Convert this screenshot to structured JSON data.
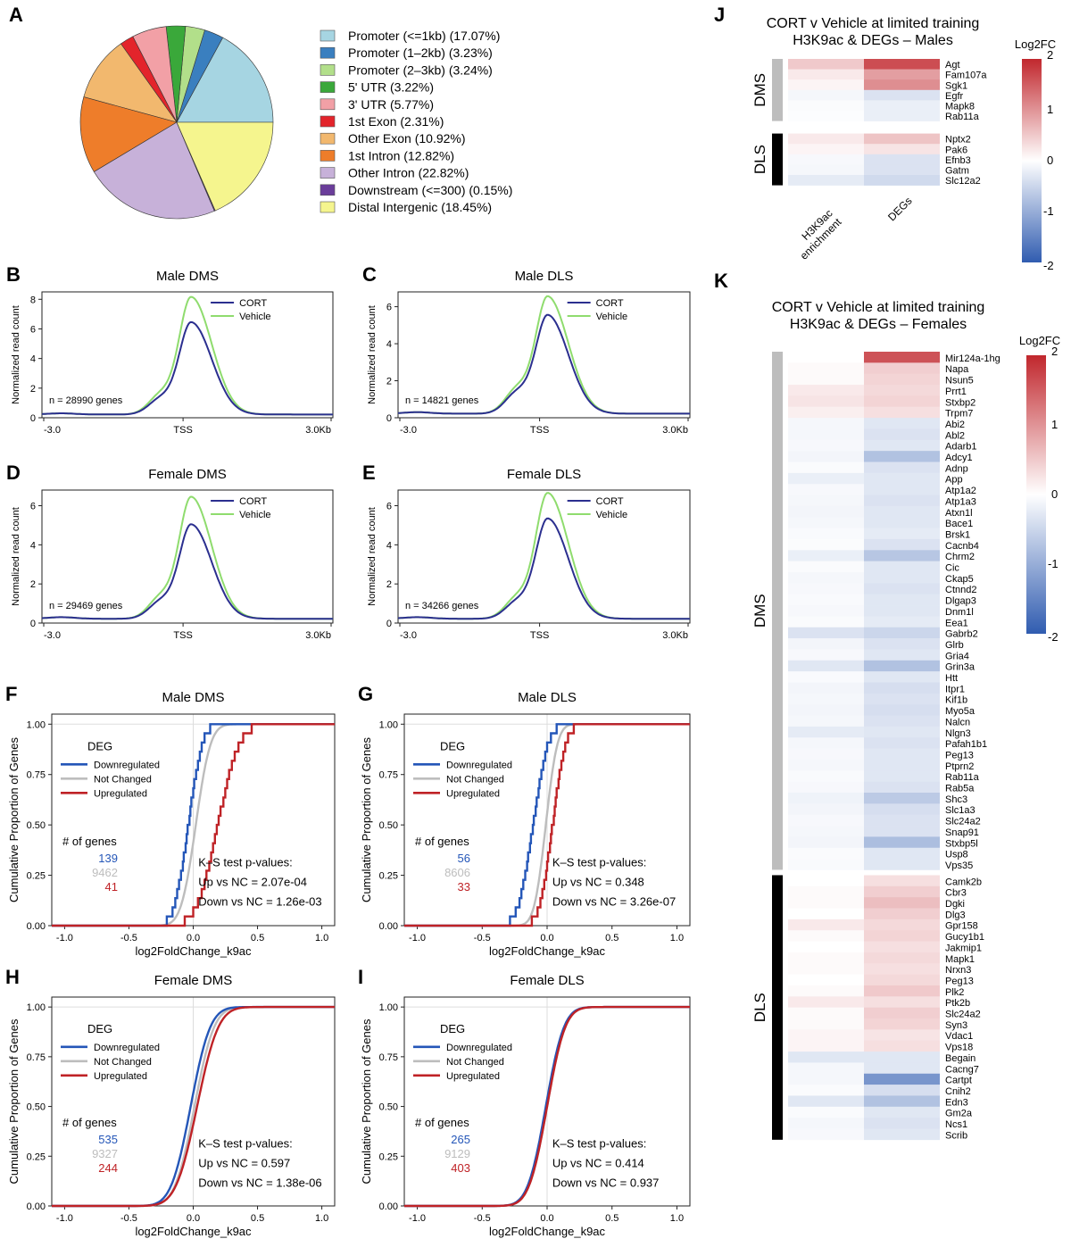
{
  "chart_data": [
    {
      "id": "A",
      "type": "pie",
      "panel_label": "A",
      "slices": [
        {
          "label": "Promoter (<=1kb) (17.07%)",
          "value": 17.07,
          "color": "#a6d5e2"
        },
        {
          "label": "Promoter (1–2kb) (3.23%)",
          "value": 3.23,
          "color": "#3a7fbf"
        },
        {
          "label": "Promoter (2–3kb) (3.24%)",
          "value": 3.24,
          "color": "#b2df8a"
        },
        {
          "label": "5' UTR (3.22%)",
          "value": 3.22,
          "color": "#3aa83a"
        },
        {
          "label": "3' UTR (5.77%)",
          "value": 5.77,
          "color": "#f2a0a6"
        },
        {
          "label": "1st Exon (2.31%)",
          "value": 2.31,
          "color": "#e3242b"
        },
        {
          "label": "Other Exon (10.92%)",
          "value": 10.92,
          "color": "#f2b86e"
        },
        {
          "label": "1st Intron (12.82%)",
          "value": 12.82,
          "color": "#ee7d2a"
        },
        {
          "label": "Other Intron (22.82%)",
          "value": 22.82,
          "color": "#c7b1d9"
        },
        {
          "label": "Downstream (<=300) (0.15%)",
          "value": 0.15,
          "color": "#6a3d9a"
        },
        {
          "label": "Distal Intergenic (18.45%)",
          "value": 18.45,
          "color": "#f5f58e"
        }
      ]
    },
    {
      "id": "B",
      "type": "line",
      "panel_label": "B",
      "title": "Male DMS",
      "ylabel": "Normalized read count",
      "ylim": [
        0,
        8.5
      ],
      "yticks": [
        0,
        2,
        4,
        6,
        8
      ],
      "xtick_labels": [
        "-3.0",
        "TSS",
        "3.0Kb"
      ],
      "annotation": "n = 28990 genes",
      "legend": [
        "CORT",
        "Vehicle"
      ],
      "cort_peak": 6.4,
      "veh_peak": 8.1,
      "shoulder": 0.36
    },
    {
      "id": "C",
      "type": "line",
      "panel_label": "C",
      "title": "Male DLS",
      "ylabel": "Normalized read count",
      "ylim": [
        0,
        6.8
      ],
      "yticks": [
        0,
        2,
        4,
        6
      ],
      "xtick_labels": [
        "-3.0",
        "TSS",
        "3.0Kb"
      ],
      "annotation": "n = 14821 genes",
      "legend": [
        "CORT",
        "Vehicle"
      ],
      "cort_peak": 5.5,
      "veh_peak": 6.5,
      "shoulder": 0.45
    },
    {
      "id": "D",
      "type": "line",
      "panel_label": "D",
      "title": "Female DMS",
      "ylabel": "Normalized read count",
      "ylim": [
        0,
        6.8
      ],
      "yticks": [
        0,
        2,
        4,
        6
      ],
      "xtick_labels": [
        "-3.0",
        "TSS",
        "3.0Kb"
      ],
      "annotation": "n = 29469 genes",
      "legend": [
        "CORT",
        "Vehicle"
      ],
      "cort_peak": 5.0,
      "veh_peak": 6.4,
      "shoulder": 0.38
    },
    {
      "id": "E",
      "type": "line",
      "panel_label": "E",
      "title": "Female DLS",
      "ylabel": "Normalized read count",
      "ylim": [
        0,
        6.8
      ],
      "yticks": [
        0,
        2,
        4,
        6
      ],
      "xtick_labels": [
        "-3.0",
        "TSS",
        "3.0Kb"
      ],
      "annotation": "n = 34266 genes",
      "legend": [
        "CORT",
        "Vehicle"
      ],
      "cort_peak": 5.3,
      "veh_peak": 6.6,
      "shoulder": 0.36
    },
    {
      "id": "F",
      "type": "line",
      "panel_label": "F",
      "title": "Male DMS",
      "xlabel": "log2FoldChange_k9ac",
      "ylabel": "Cumulative Proportion of Genes",
      "xlim": [
        -1.1,
        1.1
      ],
      "ylim": [
        0,
        1.05
      ],
      "xticks": [
        "-1.0",
        "-0.5",
        "0.0",
        "0.5",
        "1.0"
      ],
      "yticks": [
        "0.00",
        "0.25",
        "0.50",
        "0.75",
        "1.00"
      ],
      "legend_title": "DEG",
      "legend": [
        "Downregulated",
        "Not Changed",
        "Upregulated"
      ],
      "counts_title": "# of genes",
      "counts": [
        "139",
        "9462",
        "41"
      ],
      "ks_title": "K–S test p-values:",
      "ks_up": "Up vs NC = 2.07e-04",
      "ks_down": "Down vs NC = 1.26e-03",
      "series": [
        {
          "name": "Downregulated",
          "mu": -0.04,
          "s": 0.085,
          "steps": true
        },
        {
          "name": "Not Changed",
          "mu": 0.02,
          "s": 0.09,
          "steps": false
        },
        {
          "name": "Upregulated",
          "mu": 0.19,
          "s": 0.13,
          "steps": true
        }
      ]
    },
    {
      "id": "G",
      "type": "line",
      "panel_label": "G",
      "title": "Male DLS",
      "xlabel": "log2FoldChange_k9ac",
      "ylabel": "Cumulative Proportion of Genes",
      "xlim": [
        -1.1,
        1.1
      ],
      "ylim": [
        0,
        1.05
      ],
      "xticks": [
        "-1.0",
        "-0.5",
        "0.0",
        "0.5",
        "1.0"
      ],
      "yticks": [
        "0.00",
        "0.25",
        "0.50",
        "0.75",
        "1.00"
      ],
      "legend_title": "DEG",
      "legend": [
        "Downregulated",
        "Not Changed",
        "Upregulated"
      ],
      "counts_title": "# of genes",
      "counts": [
        "56",
        "8606",
        "33"
      ],
      "ks_title": "K–S test p-values:",
      "ks_up": "Up vs NC = 0.348",
      "ks_down": "Down vs NC = 3.26e-07",
      "series": [
        {
          "name": "Downregulated",
          "mu": -0.11,
          "s": 0.09,
          "steps": true
        },
        {
          "name": "Not Changed",
          "mu": -0.01,
          "s": 0.07,
          "steps": false
        },
        {
          "name": "Upregulated",
          "mu": 0.04,
          "s": 0.08,
          "steps": true
        }
      ]
    },
    {
      "id": "H",
      "type": "line",
      "panel_label": "H",
      "title": "Female DMS",
      "xlabel": "log2FoldChange_k9ac",
      "ylabel": "Cumulative Proportion of Genes",
      "xlim": [
        -1.1,
        1.1
      ],
      "ylim": [
        0,
        1.05
      ],
      "xticks": [
        "-1.0",
        "-0.5",
        "0.0",
        "0.5",
        "1.0"
      ],
      "yticks": [
        "0.00",
        "0.25",
        "0.50",
        "0.75",
        "1.00"
      ],
      "legend_title": "DEG",
      "legend": [
        "Downregulated",
        "Not Changed",
        "Upregulated"
      ],
      "counts_title": "# of genes",
      "counts": [
        "535",
        "9327",
        "244"
      ],
      "ks_title": "K–S test p-values:",
      "ks_up": "Up vs NC = 0.597",
      "ks_down": "Down vs NC = 1.38e-06",
      "series": [
        {
          "name": "Downregulated",
          "mu": -0.02,
          "s": 0.12,
          "steps": false
        },
        {
          "name": "Not Changed",
          "mu": 0.01,
          "s": 0.12,
          "steps": false
        },
        {
          "name": "Upregulated",
          "mu": 0.03,
          "s": 0.13,
          "steps": false
        }
      ]
    },
    {
      "id": "I",
      "type": "line",
      "panel_label": "I",
      "title": "Female DLS",
      "xlabel": "log2FoldChange_k9ac",
      "ylabel": "Cumulative Proportion of Genes",
      "xlim": [
        -1.1,
        1.1
      ],
      "ylim": [
        0,
        1.05
      ],
      "xticks": [
        "-1.0",
        "-0.5",
        "0.0",
        "0.5",
        "1.0"
      ],
      "yticks": [
        "0.00",
        "0.25",
        "0.50",
        "0.75",
        "1.00"
      ],
      "legend_title": "DEG",
      "legend": [
        "Downregulated",
        "Not Changed",
        "Upregulated"
      ],
      "counts_title": "# of genes",
      "counts": [
        "265",
        "9129",
        "403"
      ],
      "ks_title": "K–S test p-values:",
      "ks_up": "Up vs NC = 0.414",
      "ks_down": "Down vs NC = 0.937",
      "series": [
        {
          "name": "Downregulated",
          "mu": -0.01,
          "s": 0.11,
          "steps": false
        },
        {
          "name": "Not Changed",
          "mu": 0.0,
          "s": 0.11,
          "steps": false
        },
        {
          "name": "Upregulated",
          "mu": 0.0,
          "s": 0.11,
          "steps": false
        }
      ]
    },
    {
      "id": "J",
      "type": "heatmap",
      "panel_label": "J",
      "title": "CORT v Vehicle at limited training",
      "subtitle": "H3K9ac & DEGs – Males",
      "columns": [
        "H3K9ac enrichment",
        "DEGs"
      ],
      "colorbar": {
        "title": "Log2FC",
        "ticks": [
          "2",
          "1",
          "0",
          "-1",
          "-2"
        ]
      },
      "groups": [
        {
          "name": "DMS",
          "rows": [
            [
              "Agt",
              0.5,
              1.65
            ],
            [
              "Fam107a",
              0.2,
              0.9
            ],
            [
              "Sgk1",
              0.1,
              1.05
            ],
            [
              "Egfr",
              -0.1,
              -0.35
            ],
            [
              "Mapk8",
              -0.05,
              -0.2
            ],
            [
              "Rab11a",
              -0.03,
              -0.2
            ]
          ]
        },
        {
          "name": "DLS",
          "rows": [
            [
              "Nptx2",
              0.2,
              0.55
            ],
            [
              "Pak6",
              0.1,
              0.25
            ],
            [
              "Efnb3",
              -0.08,
              -0.35
            ],
            [
              "Gatm",
              -0.1,
              -0.35
            ],
            [
              "Slc12a2",
              -0.25,
              -0.45
            ]
          ]
        }
      ]
    },
    {
      "id": "K",
      "type": "heatmap",
      "panel_label": "K",
      "title": "CORT v Vehicle at limited training",
      "subtitle": "H3K9ac & DEGs – Females",
      "columns": [
        "H3K9ac enrichment",
        "DEGs"
      ],
      "colorbar": {
        "title": "Log2FC",
        "ticks": [
          "2",
          "1",
          "0",
          "-1",
          "-2"
        ]
      },
      "groups": [
        {
          "name": "DMS",
          "rows": [
            [
              "Mir124a-1hg",
              0.0,
              1.6
            ],
            [
              "Napa",
              0.05,
              0.45
            ],
            [
              "Nsun5",
              0.05,
              0.4
            ],
            [
              "Prrt1",
              0.2,
              0.35
            ],
            [
              "Stxbp2",
              0.25,
              0.4
            ],
            [
              "Trpm7",
              0.15,
              0.3
            ],
            [
              "Abi2",
              -0.1,
              -0.3
            ],
            [
              "Abl2",
              -0.1,
              -0.35
            ],
            [
              "Adarb1",
              -0.08,
              -0.3
            ],
            [
              "Adcy1",
              -0.12,
              -0.75
            ],
            [
              "Adnp",
              -0.05,
              -0.35
            ],
            [
              "App",
              -0.2,
              -0.3
            ],
            [
              "Atp1a2",
              -0.08,
              -0.3
            ],
            [
              "Atp1a3",
              -0.1,
              -0.35
            ],
            [
              "Atxn1l",
              -0.12,
              -0.3
            ],
            [
              "Bace1",
              -0.1,
              -0.3
            ],
            [
              "Brsk1",
              -0.06,
              -0.25
            ],
            [
              "Cacnb4",
              -0.04,
              -0.35
            ],
            [
              "Chrm2",
              -0.2,
              -0.7
            ],
            [
              "Cic",
              -0.05,
              -0.3
            ],
            [
              "Ckap5",
              -0.1,
              -0.3
            ],
            [
              "Ctnnd2",
              -0.08,
              -0.35
            ],
            [
              "Dlgap3",
              -0.06,
              -0.3
            ],
            [
              "Dnm1l",
              -0.08,
              -0.3
            ],
            [
              "Eea1",
              -0.05,
              -0.25
            ],
            [
              "Gabrb2",
              -0.35,
              -0.5
            ],
            [
              "Glrb",
              -0.12,
              -0.35
            ],
            [
              "Gria4",
              -0.08,
              -0.3
            ],
            [
              "Grin3a",
              -0.3,
              -0.75
            ],
            [
              "Htt",
              -0.06,
              -0.3
            ],
            [
              "Itpr1",
              -0.12,
              -0.4
            ],
            [
              "Kif1b",
              -0.1,
              -0.35
            ],
            [
              "Myo5a",
              -0.12,
              -0.4
            ],
            [
              "Nalcn",
              -0.1,
              -0.35
            ],
            [
              "Nlgn3",
              -0.25,
              -0.3
            ],
            [
              "Pafah1b1",
              -0.1,
              -0.35
            ],
            [
              "Peg13",
              -0.08,
              -0.3
            ],
            [
              "Ptprn2",
              -0.1,
              -0.3
            ],
            [
              "Rab11a",
              -0.06,
              -0.3
            ],
            [
              "Rab5a",
              -0.08,
              -0.35
            ],
            [
              "Shc3",
              -0.15,
              -0.65
            ],
            [
              "Slc1a3",
              -0.12,
              -0.4
            ],
            [
              "Slc24a2",
              -0.08,
              -0.35
            ],
            [
              "Snap91",
              -0.1,
              -0.35
            ],
            [
              "Stxbp5l",
              -0.12,
              -0.8
            ],
            [
              "Usp8",
              -0.05,
              -0.3
            ],
            [
              "Vps35",
              -0.06,
              -0.3
            ]
          ]
        },
        {
          "name": "DLS",
          "rows": [
            [
              "Camk2b",
              0.0,
              0.3
            ],
            [
              "Cbr3",
              0.05,
              0.45
            ],
            [
              "Dgki",
              0.05,
              0.6
            ],
            [
              "Dlg3",
              0.0,
              0.45
            ],
            [
              "Gpr158",
              0.2,
              0.35
            ],
            [
              "Gucy1b1",
              0.05,
              0.4
            ],
            [
              "Jakmip1",
              0.0,
              0.3
            ],
            [
              "Mapk1",
              0.05,
              0.35
            ],
            [
              "Nrxn3",
              0.05,
              0.3
            ],
            [
              "Peg13",
              0.0,
              0.35
            ],
            [
              "Plk2",
              0.05,
              0.5
            ],
            [
              "Ptk2b",
              0.2,
              0.3
            ],
            [
              "Slc24a2",
              0.05,
              0.45
            ],
            [
              "Syn3",
              0.05,
              0.4
            ],
            [
              "Vdac1",
              0.1,
              0.25
            ],
            [
              "Vps18",
              0.1,
              0.3
            ],
            [
              "Begain",
              -0.3,
              -0.3
            ],
            [
              "Cacng7",
              -0.1,
              -0.3
            ],
            [
              "Cartpt",
              -0.1,
              -1.3
            ],
            [
              "Cnih2",
              -0.05,
              -0.4
            ],
            [
              "Edn3",
              -0.3,
              -0.75
            ],
            [
              "Gm2a",
              -0.05,
              -0.3
            ],
            [
              "Ncs1",
              -0.1,
              -0.35
            ],
            [
              "Scrib",
              -0.08,
              -0.3
            ]
          ]
        }
      ]
    }
  ]
}
